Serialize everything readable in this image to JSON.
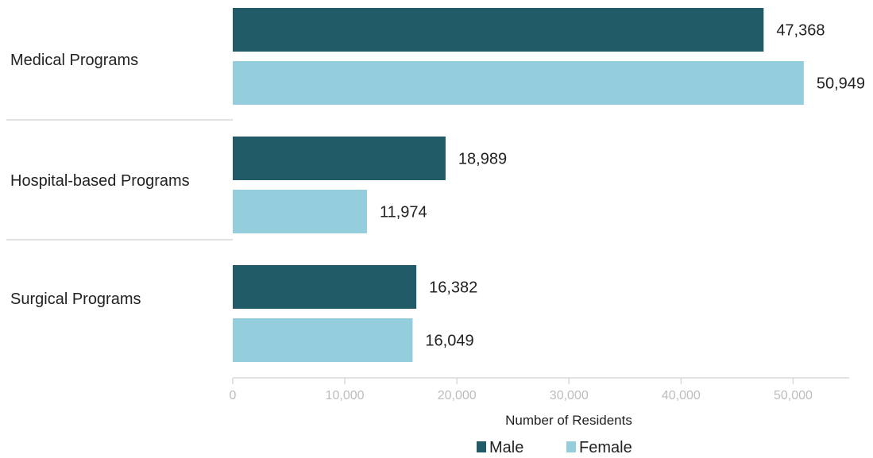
{
  "chart_data": {
    "type": "bar",
    "orientation": "horizontal",
    "categories": [
      "Medical Programs",
      "Hospital-based Programs",
      "Surgical Programs"
    ],
    "series": [
      {
        "name": "Male",
        "color": "#225b68",
        "values": [
          47368,
          18989,
          16382
        ],
        "labels": [
          "47,368",
          "18,989",
          "16,382"
        ]
      },
      {
        "name": "Female",
        "color": "#94cddc",
        "values": [
          50949,
          11974,
          16049
        ],
        "labels": [
          "50,949",
          "11,974",
          "16,049"
        ]
      }
    ],
    "xlabel": "Number of Residents",
    "xlim": [
      0,
      55000
    ],
    "xticks": [
      0,
      10000,
      20000,
      30000,
      40000,
      50000
    ],
    "xtick_labels": [
      "0",
      "10,000",
      "20,000",
      "30,000",
      "40,000",
      "50,000"
    ],
    "grid": false,
    "legend": "bottom-center"
  }
}
